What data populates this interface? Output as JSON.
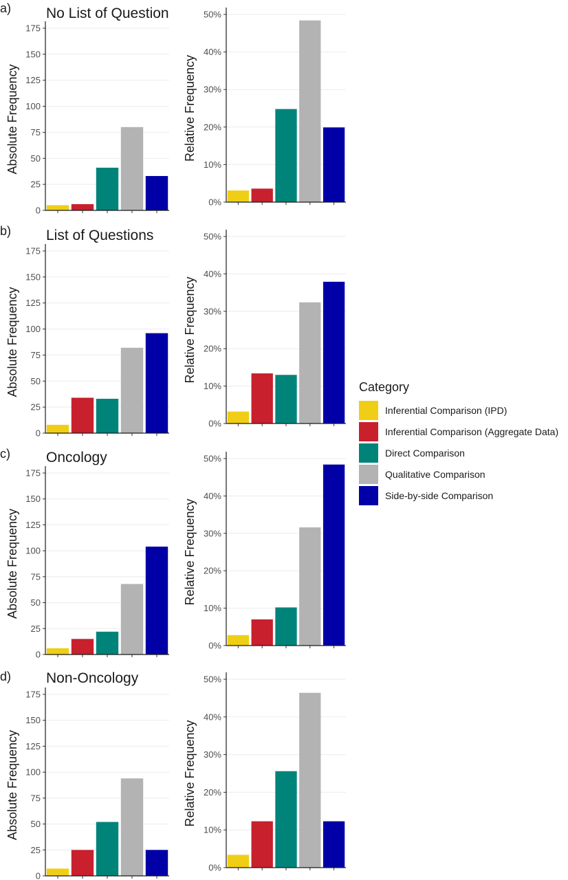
{
  "legend": {
    "title": "Category",
    "entries": [
      {
        "label": "Inferential Comparison (IPD)",
        "color": "#F0CE15"
      },
      {
        "label": "Inferential Comparison (Aggregate Data)",
        "color": "#C8202D"
      },
      {
        "label": "Direct Comparison",
        "color": "#00847A"
      },
      {
        "label": "Qualitative Comparison",
        "color": "#B3B3B3"
      },
      {
        "label": "Side-by-side Comparison",
        "color": "#0000A6"
      }
    ]
  },
  "panels": [
    {
      "letter": "a)",
      "title": "No List of Question"
    },
    {
      "letter": "b)",
      "title": "List of Questions"
    },
    {
      "letter": "c)",
      "title": "Oncology"
    },
    {
      "letter": "d)",
      "title": "Non-Oncology"
    }
  ],
  "chart_data": [
    {
      "type": "bar",
      "title": "No List of Question",
      "ylabel": "Absolute Frequency",
      "ylim": [
        0,
        175
      ],
      "yticks": [
        "0",
        "25",
        "50",
        "75",
        "100",
        "125",
        "150",
        "175"
      ],
      "categories": [
        "Inferential Comparison (IPD)",
        "Inferential Comparison (Aggregate Data)",
        "Direct Comparison",
        "Qualitative Comparison",
        "Side-by-side Comparison"
      ],
      "values": [
        5,
        6,
        41,
        80,
        33
      ],
      "grid": true
    },
    {
      "type": "bar",
      "title": "",
      "ylabel": "Relative Frequency",
      "ylim": [
        0,
        0.5
      ],
      "yticks": [
        "0%",
        "10%",
        "20%",
        "30%",
        "40%",
        "50%"
      ],
      "categories": [
        "Inferential Comparison (IPD)",
        "Inferential Comparison (Aggregate Data)",
        "Direct Comparison",
        "Qualitative Comparison",
        "Side-by-side Comparison"
      ],
      "values": [
        0.031,
        0.036,
        0.248,
        0.484,
        0.199
      ],
      "grid": true
    },
    {
      "type": "bar",
      "title": "List of Questions",
      "ylabel": "Absolute Frequency",
      "ylim": [
        0,
        175
      ],
      "yticks": [
        "0",
        "25",
        "50",
        "75",
        "100",
        "125",
        "150",
        "175"
      ],
      "categories": [
        "Inferential Comparison (IPD)",
        "Inferential Comparison (Aggregate Data)",
        "Direct Comparison",
        "Qualitative Comparison",
        "Side-by-side Comparison"
      ],
      "values": [
        8,
        34,
        33,
        82,
        96
      ],
      "grid": true
    },
    {
      "type": "bar",
      "title": "",
      "ylabel": "Relative Frequency",
      "ylim": [
        0,
        0.5
      ],
      "yticks": [
        "0%",
        "10%",
        "20%",
        "30%",
        "40%",
        "50%"
      ],
      "categories": [
        "Inferential Comparison (IPD)",
        "Inferential Comparison (Aggregate Data)",
        "Direct Comparison",
        "Qualitative Comparison",
        "Side-by-side Comparison"
      ],
      "values": [
        0.032,
        0.134,
        0.13,
        0.324,
        0.379
      ],
      "grid": true
    },
    {
      "type": "bar",
      "title": "Oncology",
      "ylabel": "Absolute Frequency",
      "ylim": [
        0,
        175
      ],
      "yticks": [
        "0",
        "25",
        "50",
        "75",
        "100",
        "125",
        "150",
        "175"
      ],
      "categories": [
        "Inferential Comparison (IPD)",
        "Inferential Comparison (Aggregate Data)",
        "Direct Comparison",
        "Qualitative Comparison",
        "Side-by-side Comparison"
      ],
      "values": [
        6,
        15,
        22,
        68,
        104
      ],
      "grid": true
    },
    {
      "type": "bar",
      "title": "",
      "ylabel": "Relative Frequency",
      "ylim": [
        0,
        0.5
      ],
      "yticks": [
        "0%",
        "10%",
        "20%",
        "30%",
        "40%",
        "50%"
      ],
      "categories": [
        "Inferential Comparison (IPD)",
        "Inferential Comparison (Aggregate Data)",
        "Direct Comparison",
        "Qualitative Comparison",
        "Side-by-side Comparison"
      ],
      "values": [
        0.028,
        0.07,
        0.102,
        0.316,
        0.484
      ],
      "grid": true
    },
    {
      "type": "bar",
      "title": "Non-Oncology",
      "ylabel": "Absolute Frequency",
      "ylim": [
        0,
        175
      ],
      "yticks": [
        "0",
        "25",
        "50",
        "75",
        "100",
        "125",
        "150",
        "175"
      ],
      "categories": [
        "Inferential Comparison (IPD)",
        "Inferential Comparison (Aggregate Data)",
        "Direct Comparison",
        "Qualitative Comparison",
        "Side-by-side Comparison"
      ],
      "values": [
        7,
        25,
        52,
        94,
        25
      ],
      "grid": true
    },
    {
      "type": "bar",
      "title": "",
      "ylabel": "Relative Frequency",
      "ylim": [
        0,
        0.5
      ],
      "yticks": [
        "0%",
        "10%",
        "20%",
        "30%",
        "40%",
        "50%"
      ],
      "categories": [
        "Inferential Comparison (IPD)",
        "Inferential Comparison (Aggregate Data)",
        "Direct Comparison",
        "Qualitative Comparison",
        "Side-by-side Comparison"
      ],
      "values": [
        0.034,
        0.123,
        0.256,
        0.464,
        0.123
      ],
      "grid": true
    }
  ]
}
